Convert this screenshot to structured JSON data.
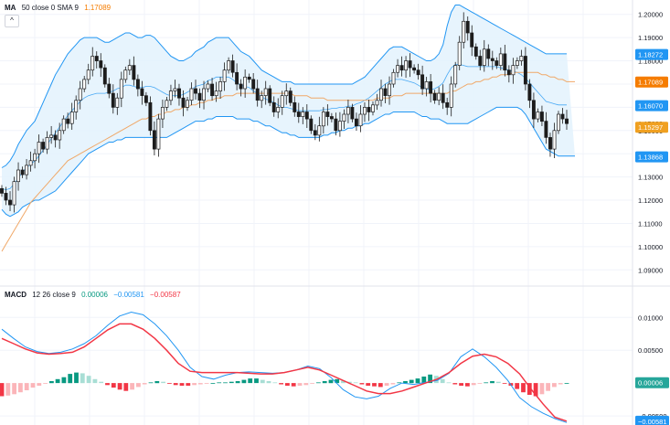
{
  "legends": {
    "ma": {
      "name": "MA",
      "params": "50 close 0 SMA 9",
      "value": "1.17089",
      "value_color": "#f57c00"
    },
    "macd": {
      "name": "MACD",
      "params": "12 26 close 9",
      "v1": "0.00006",
      "v2": "−0.00581",
      "v3": "−0.00587",
      "v1_color": "#089981",
      "v2_color": "#2196f3",
      "v3_color": "#f23645"
    },
    "collapse_glyph": "^"
  },
  "colors": {
    "up": "#089981",
    "down": "#f23645",
    "candle": "#1c1c1c",
    "bb_line": "#2196f3",
    "bb_fill": "#e3f2fd",
    "ma_line": "#f0a868",
    "macd_line": "#2196f3",
    "signal_line": "#f23645",
    "grid": "#f0f3fa",
    "axis_text": "#131722"
  },
  "chart_data": [
    {
      "type": "candlestick",
      "title": "",
      "overlays": [
        "Bollinger Bands",
        "MA 50"
      ],
      "ylim": [
        1.085,
        1.205
      ],
      "y_ticks": [
        "1.09000",
        "1.10000",
        "1.11000",
        "1.12000",
        "1.13000",
        "1.14000",
        "1.15000",
        "1.16000",
        "1.17000",
        "1.18000",
        "1.19000",
        "1.20000"
      ],
      "price_labels": [
        {
          "text": "1.18272",
          "value": 1.18272,
          "kind": "bb_upper"
        },
        {
          "text": "1.17089",
          "value": 1.17089,
          "kind": "ma"
        },
        {
          "text": "1.16070",
          "value": 1.1607,
          "kind": "bb_basis"
        },
        {
          "text": "1.15309",
          "value": 1.15309,
          "kind": "last"
        },
        {
          "text": "1.15297",
          "value": 1.15297,
          "kind": "ma_marker"
        },
        {
          "text": "1.13868",
          "value": 1.13868,
          "kind": "bb_lower"
        }
      ],
      "closes": [
        1.123,
        1.12,
        1.118,
        1.128,
        1.133,
        1.131,
        1.135,
        1.137,
        1.14,
        1.145,
        1.142,
        1.147,
        1.148,
        1.146,
        1.15,
        1.155,
        1.153,
        1.158,
        1.163,
        1.168,
        1.172,
        1.176,
        1.182,
        1.18,
        1.177,
        1.17,
        1.166,
        1.16,
        1.164,
        1.172,
        1.176,
        1.178,
        1.172,
        1.168,
        1.165,
        1.162,
        1.15,
        1.142,
        1.155,
        1.16,
        1.163,
        1.167,
        1.168,
        1.164,
        1.16,
        1.163,
        1.168,
        1.166,
        1.163,
        1.168,
        1.17,
        1.165,
        1.167,
        1.171,
        1.176,
        1.18,
        1.175,
        1.17,
        1.168,
        1.173,
        1.172,
        1.168,
        1.163,
        1.165,
        1.168,
        1.162,
        1.158,
        1.16,
        1.165,
        1.167,
        1.162,
        1.158,
        1.156,
        1.158,
        1.155,
        1.15,
        1.148,
        1.152,
        1.158,
        1.156,
        1.155,
        1.15,
        1.154,
        1.157,
        1.16,
        1.155,
        1.152,
        1.157,
        1.16,
        1.158,
        1.161,
        1.163,
        1.168,
        1.165,
        1.17,
        1.175,
        1.178,
        1.176,
        1.18,
        1.177,
        1.176,
        1.174,
        1.168,
        1.171,
        1.166,
        1.163,
        1.166,
        1.162,
        1.16,
        1.17,
        1.178,
        1.188,
        1.197,
        1.192,
        1.186,
        1.182,
        1.178,
        1.185,
        1.181,
        1.18,
        1.178,
        1.183,
        1.176,
        1.174,
        1.178,
        1.18,
        1.182,
        1.17,
        1.163,
        1.155,
        1.158,
        1.154,
        1.147,
        1.142,
        1.15,
        1.157,
        1.155,
        1.153
      ],
      "bb_upper": [
        1.134,
        1.135,
        1.137,
        1.14,
        1.144,
        1.147,
        1.15,
        1.152,
        1.154,
        1.158,
        1.162,
        1.166,
        1.17,
        1.174,
        1.177,
        1.18,
        1.183,
        1.185,
        1.187,
        1.189,
        1.19,
        1.19,
        1.19,
        1.19,
        1.189,
        1.188,
        1.188,
        1.189,
        1.19,
        1.191,
        1.192,
        1.192,
        1.191,
        1.19,
        1.19,
        1.191,
        1.191,
        1.19,
        1.188,
        1.186,
        1.184,
        1.182,
        1.181,
        1.18,
        1.18,
        1.181,
        1.182,
        1.184,
        1.185,
        1.186,
        1.188,
        1.189,
        1.19,
        1.19,
        1.19,
        1.19,
        1.188,
        1.186,
        1.184,
        1.183,
        1.182,
        1.18,
        1.178,
        1.176,
        1.175,
        1.174,
        1.173,
        1.172,
        1.171,
        1.171,
        1.171,
        1.17,
        1.17,
        1.17,
        1.17,
        1.17,
        1.17,
        1.17,
        1.17,
        1.17,
        1.17,
        1.17,
        1.17,
        1.17,
        1.17,
        1.17,
        1.171,
        1.172,
        1.173,
        1.175,
        1.177,
        1.179,
        1.181,
        1.183,
        1.185,
        1.186,
        1.186,
        1.186,
        1.185,
        1.184,
        1.183,
        1.182,
        1.181,
        1.18,
        1.18,
        1.181,
        1.183,
        1.187,
        1.195,
        1.201,
        1.204,
        1.204,
        1.203,
        1.202,
        1.201,
        1.2,
        1.199,
        1.198,
        1.197,
        1.196,
        1.195,
        1.194,
        1.193,
        1.192,
        1.191,
        1.19,
        1.189,
        1.188,
        1.187,
        1.186,
        1.185,
        1.184,
        1.183,
        1.183,
        1.183,
        1.183,
        1.183,
        1.183
      ],
      "bb_lower": [
        1.116,
        1.114,
        1.113,
        1.114,
        1.115,
        1.117,
        1.118,
        1.119,
        1.12,
        1.12,
        1.121,
        1.122,
        1.123,
        1.124,
        1.126,
        1.128,
        1.13,
        1.132,
        1.134,
        1.136,
        1.138,
        1.14,
        1.141,
        1.142,
        1.143,
        1.144,
        1.145,
        1.145,
        1.146,
        1.146,
        1.147,
        1.147,
        1.147,
        1.147,
        1.147,
        1.147,
        1.147,
        1.147,
        1.147,
        1.147,
        1.147,
        1.148,
        1.149,
        1.15,
        1.151,
        1.152,
        1.153,
        1.154,
        1.154,
        1.154,
        1.155,
        1.155,
        1.156,
        1.156,
        1.156,
        1.156,
        1.156,
        1.155,
        1.155,
        1.155,
        1.155,
        1.154,
        1.154,
        1.153,
        1.152,
        1.152,
        1.151,
        1.15,
        1.149,
        1.149,
        1.148,
        1.148,
        1.147,
        1.147,
        1.147,
        1.147,
        1.147,
        1.147,
        1.148,
        1.148,
        1.149,
        1.149,
        1.15,
        1.15,
        1.151,
        1.151,
        1.152,
        1.152,
        1.153,
        1.153,
        1.154,
        1.155,
        1.156,
        1.157,
        1.157,
        1.158,
        1.158,
        1.158,
        1.158,
        1.158,
        1.158,
        1.157,
        1.156,
        1.156,
        1.155,
        1.155,
        1.155,
        1.154,
        1.153,
        1.153,
        1.153,
        1.153,
        1.153,
        1.153,
        1.154,
        1.155,
        1.156,
        1.157,
        1.158,
        1.159,
        1.16,
        1.16,
        1.16,
        1.16,
        1.16,
        1.16,
        1.159,
        1.157,
        1.154,
        1.151,
        1.148,
        1.145,
        1.142,
        1.141,
        1.14,
        1.139,
        1.139,
        1.139,
        1.139,
        1.139
      ],
      "ma50": [
        1.098,
        1.101,
        1.104,
        1.107,
        1.11,
        1.113,
        1.116,
        1.119,
        1.121,
        1.123,
        1.125,
        1.127,
        1.129,
        1.131,
        1.133,
        1.135,
        1.137,
        1.138,
        1.139,
        1.14,
        1.141,
        1.142,
        1.143,
        1.144,
        1.145,
        1.146,
        1.147,
        1.148,
        1.149,
        1.15,
        1.151,
        1.152,
        1.153,
        1.154,
        1.155,
        1.155,
        1.156,
        1.156,
        1.157,
        1.157,
        1.158,
        1.158,
        1.159,
        1.159,
        1.16,
        1.16,
        1.161,
        1.161,
        1.162,
        1.162,
        1.163,
        1.163,
        1.164,
        1.164,
        1.165,
        1.165,
        1.165,
        1.166,
        1.166,
        1.166,
        1.166,
        1.166,
        1.166,
        1.166,
        1.166,
        1.166,
        1.166,
        1.166,
        1.166,
        1.166,
        1.166,
        1.165,
        1.165,
        1.165,
        1.165,
        1.164,
        1.164,
        1.164,
        1.164,
        1.163,
        1.163,
        1.163,
        1.163,
        1.163,
        1.163,
        1.163,
        1.163,
        1.163,
        1.163,
        1.163,
        1.163,
        1.164,
        1.164,
        1.164,
        1.164,
        1.165,
        1.165,
        1.165,
        1.166,
        1.166,
        1.166,
        1.166,
        1.166,
        1.166,
        1.166,
        1.166,
        1.166,
        1.166,
        1.166,
        1.167,
        1.167,
        1.168,
        1.169,
        1.17,
        1.17,
        1.171,
        1.171,
        1.172,
        1.172,
        1.173,
        1.173,
        1.174,
        1.174,
        1.174,
        1.175,
        1.175,
        1.175,
        1.175,
        1.175,
        1.175,
        1.175,
        1.174,
        1.174,
        1.173,
        1.173,
        1.172,
        1.172,
        1.171,
        1.171,
        1.171
      ]
    },
    {
      "type": "line",
      "title": "",
      "ylim": [
        -0.0061,
        0.0124
      ],
      "y_ticks": [
        "0.01000",
        "0.00500",
        "−0.00500"
      ],
      "price_labels": [
        {
          "text": "0.00006",
          "value": 6e-05,
          "kind": "hist"
        },
        {
          "text": "−0.00581",
          "value": -0.00581,
          "kind": "macd"
        }
      ],
      "macd": [
        0.0082,
        0.0068,
        0.0055,
        0.0048,
        0.0045,
        0.0047,
        0.0052,
        0.006,
        0.0072,
        0.0088,
        0.0102,
        0.0108,
        0.0104,
        0.009,
        0.0072,
        0.005,
        0.0024,
        0.001,
        0.0006,
        0.0012,
        0.0016,
        0.0017,
        0.0016,
        0.0015,
        0.0016,
        0.002,
        0.0026,
        0.0022,
        0.0008,
        -0.001,
        -0.0021,
        -0.0024,
        -0.002,
        -0.0008,
        0.0,
        -0.0002,
        0.0001,
        0.0004,
        0.0015,
        0.004,
        0.0052,
        0.004,
        0.0024,
        0.0004,
        -0.0022,
        -0.0036,
        -0.0046,
        -0.0054,
        -0.006
      ],
      "signal": [
        0.0068,
        0.006,
        0.0052,
        0.0046,
        0.0044,
        0.0045,
        0.0047,
        0.0055,
        0.0068,
        0.0081,
        0.009,
        0.009,
        0.0082,
        0.0068,
        0.005,
        0.003,
        0.0018,
        0.0016,
        0.0016,
        0.0016,
        0.0016,
        0.0015,
        0.0014,
        0.0014,
        0.0016,
        0.002,
        0.0024,
        0.002,
        0.0012,
        0.0004,
        -0.0004,
        -0.0012,
        -0.0016,
        -0.0016,
        -0.0012,
        -0.0006,
        0.0,
        0.0006,
        0.0016,
        0.003,
        0.0041,
        0.0044,
        0.004,
        0.003,
        0.0014,
        -0.001,
        -0.0032,
        -0.0052,
        -0.0058
      ],
      "hist": [
        -0.002,
        -0.0019,
        -0.0017,
        -0.0014,
        -0.0011,
        -0.0007,
        -0.0004,
        -0.0001,
        0.0003,
        0.0006,
        0.0009,
        0.0014,
        0.0016,
        0.0015,
        0.0011,
        0.0006,
        0.0002,
        -0.0003,
        -0.0007,
        -0.001,
        -0.0012,
        -0.001,
        -0.0006,
        -0.0002,
        0.0001,
        0.0003,
        0.0002,
        -0.0001,
        -0.0003,
        -0.0004,
        -0.0004,
        -0.0003,
        -0.0002,
        -0.0001,
        0.0,
        0.0001,
        0.0001,
        0.0002,
        0.0003,
        0.0005,
        0.0007,
        0.0007,
        0.0005,
        0.0003,
        0.0001,
        -0.0002,
        -0.0004,
        -0.0005,
        -0.0004,
        -0.0003,
        -0.0001,
        0.0001,
        0.0003,
        0.0005,
        0.0006,
        0.0004,
        0.0002,
        0.0001,
        -0.0002,
        -0.0004,
        -0.0005,
        -0.0006,
        -0.0004,
        -0.0002,
        0.0001,
        0.0003,
        0.0005,
        0.0007,
        0.001,
        0.0013,
        0.0011,
        0.0006,
        0.0001,
        -0.0002,
        -0.0004,
        -0.0005,
        -0.0003,
        -0.0001,
        0.0001,
        0.0003,
        0.0002,
        -0.0001,
        -0.0004,
        -0.0009,
        -0.0014,
        -0.0018,
        -0.002,
        -0.0017,
        -0.0012,
        -0.0006,
        -0.0002,
        0.0
      ]
    }
  ]
}
